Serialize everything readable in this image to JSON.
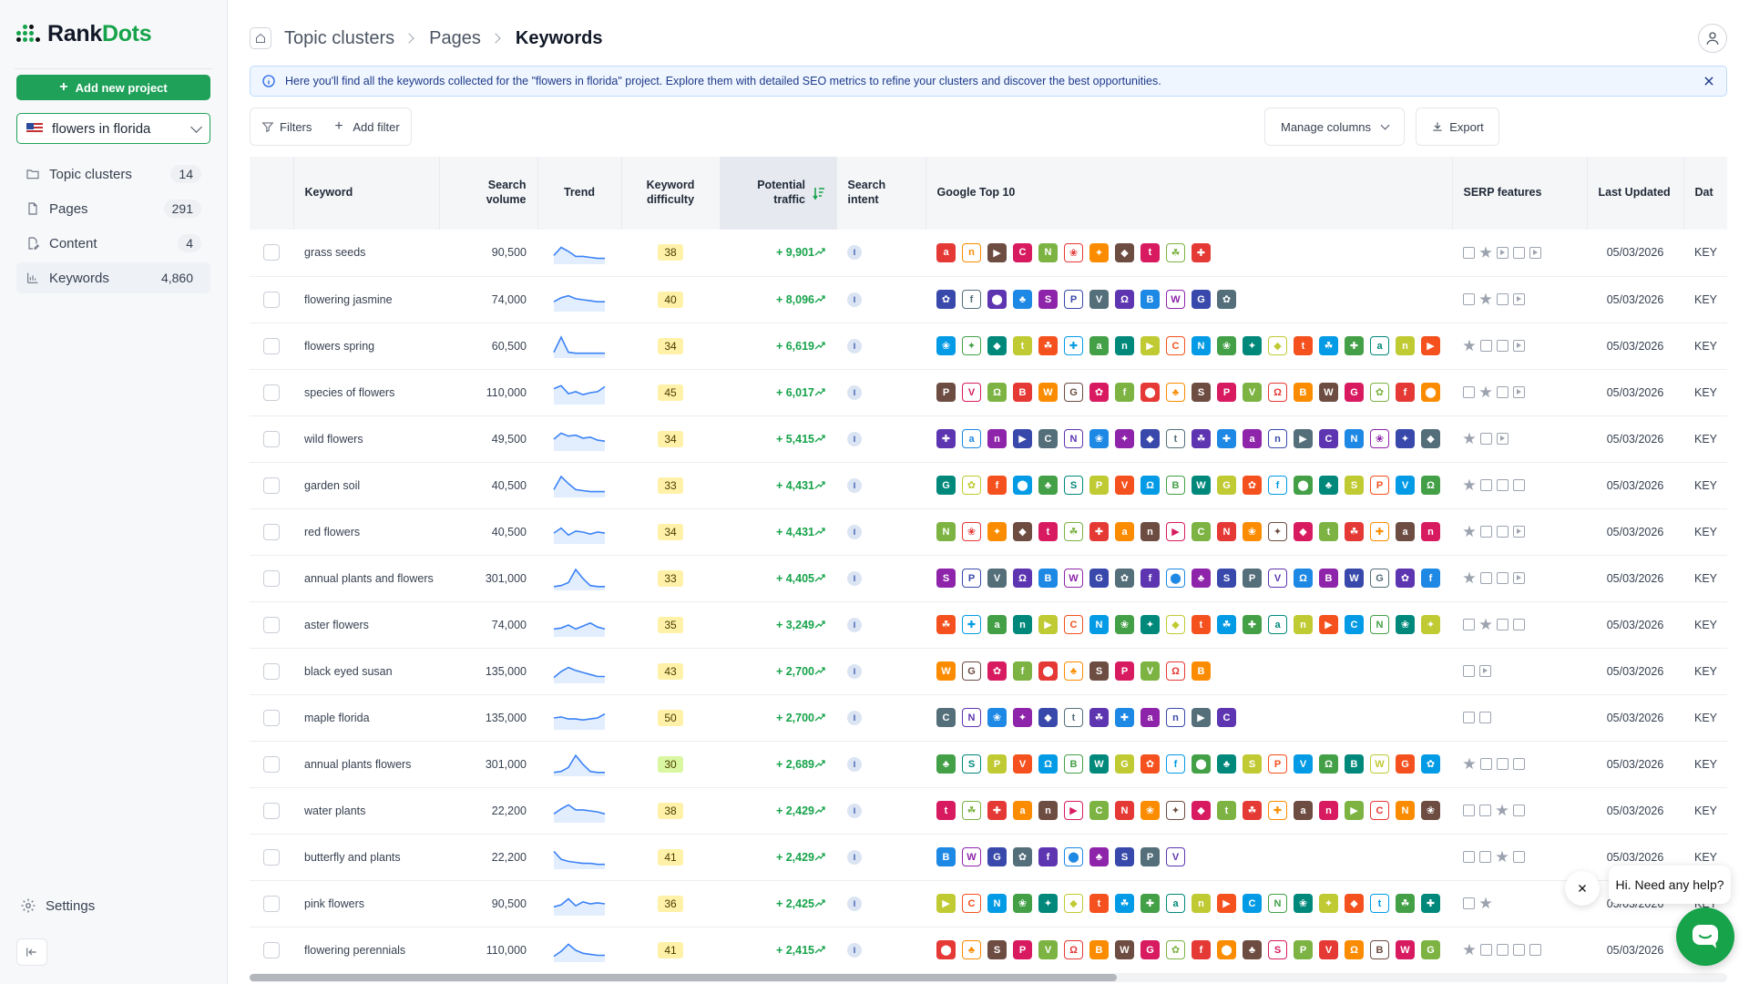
{
  "brand": {
    "name_a": "Rank",
    "name_b": "Dots",
    "color": "#16a34a"
  },
  "sidebar": {
    "add_project_label": "Add new project",
    "project": {
      "name": "flowers in florida",
      "flag": "us-flag-icon"
    },
    "items": [
      {
        "label": "Topic clusters",
        "count": "14",
        "icon": "folder-icon"
      },
      {
        "label": "Pages",
        "count": "291",
        "icon": "file-icon"
      },
      {
        "label": "Content",
        "count": "4",
        "icon": "edit-file-icon"
      },
      {
        "label": "Keywords",
        "count": "4,860",
        "icon": "bar-chart-icon",
        "active": true
      }
    ],
    "settings_label": "Settings"
  },
  "header": {
    "breadcrumbs": [
      "Topic clusters",
      "Pages",
      "Keywords"
    ]
  },
  "banner": {
    "text": "Here you'll find all the keywords collected for the \"flowers in florida\" project. Explore them with detailed SEO metrics to refine your clusters and discover the best opportunities."
  },
  "toolbar": {
    "filters_label": "Filters",
    "add_filter_label": "Add filter",
    "manage_columns_label": "Manage columns",
    "export_label": "Export"
  },
  "table": {
    "columns": {
      "keyword": "Keyword",
      "volume_a": "Search",
      "volume_b": "volume",
      "trend": "Trend",
      "difficulty_a": "Keyword",
      "difficulty_b": "difficulty",
      "traffic_a": "Potential",
      "traffic_b": "traffic",
      "intent_a": "Search",
      "intent_b": "intent",
      "top10": "Google Top 10",
      "serp": "SERP features",
      "updated": "Last Updated",
      "date_partial": "Dat"
    },
    "intent_label": "I",
    "date_partial_cell": "KEY",
    "rows": [
      {
        "keyword": "grass seeds",
        "volume": "90,500",
        "difficulty": 38,
        "traffic": "+ 9,901",
        "updated": "05/03/2026",
        "trend": [
          0.35,
          0.75,
          0.55,
          0.3,
          0.3,
          0.25,
          0.2,
          0.2
        ],
        "serp": [
          "box",
          "star",
          "play",
          "box",
          "play"
        ],
        "fav": 11
      },
      {
        "keyword": "flowering jasmine",
        "volume": "74,000",
        "difficulty": 40,
        "traffic": "+ 8,096",
        "updated": "05/03/2026",
        "trend": [
          0.4,
          0.6,
          0.7,
          0.55,
          0.5,
          0.45,
          0.4,
          0.4
        ],
        "serp": [
          "box",
          "star",
          "box",
          "play"
        ],
        "fav": 12
      },
      {
        "keyword": "flowers spring",
        "volume": "60,500",
        "difficulty": 34,
        "traffic": "+ 6,619",
        "updated": "05/03/2026",
        "trend": [
          0.2,
          0.95,
          0.2,
          0.15,
          0.15,
          0.15,
          0.15,
          0.15
        ],
        "serp": [
          "star",
          "box",
          "box",
          "play"
        ],
        "fav": 20
      },
      {
        "keyword": "species of flowers",
        "volume": "110,000",
        "difficulty": 45,
        "traffic": "+ 6,017",
        "updated": "05/03/2026",
        "trend": [
          0.7,
          0.85,
          0.45,
          0.55,
          0.4,
          0.5,
          0.55,
          0.8
        ],
        "serp": [
          "box",
          "star",
          "box",
          "play"
        ],
        "fav": 20
      },
      {
        "keyword": "wild flowers",
        "volume": "49,500",
        "difficulty": 34,
        "traffic": "+ 5,415",
        "updated": "05/03/2026",
        "trend": [
          0.5,
          0.8,
          0.65,
          0.7,
          0.55,
          0.6,
          0.45,
          0.4
        ],
        "serp": [
          "star",
          "box",
          "play"
        ],
        "fav": 20
      },
      {
        "keyword": "garden soil",
        "volume": "40,500",
        "difficulty": 33,
        "traffic": "+ 4,431",
        "updated": "05/03/2026",
        "trend": [
          0.3,
          0.95,
          0.6,
          0.3,
          0.25,
          0.2,
          0.2,
          0.2
        ],
        "serp": [
          "star",
          "box",
          "box",
          "box"
        ],
        "fav": 20
      },
      {
        "keyword": "red flowers",
        "volume": "40,500",
        "difficulty": 34,
        "traffic": "+ 4,431",
        "updated": "05/03/2026",
        "trend": [
          0.45,
          0.7,
          0.35,
          0.55,
          0.5,
          0.4,
          0.5,
          0.45
        ],
        "serp": [
          "star",
          "box",
          "box",
          "play"
        ],
        "fav": 20
      },
      {
        "keyword": "annual plants and flowers",
        "volume": "301,000",
        "difficulty": 33,
        "traffic": "+ 4,405",
        "updated": "05/03/2026",
        "trend": [
          0.1,
          0.15,
          0.3,
          0.95,
          0.5,
          0.15,
          0.1,
          0.1
        ],
        "serp": [
          "star",
          "box",
          "box",
          "play"
        ],
        "fav": 20
      },
      {
        "keyword": "aster flowers",
        "volume": "74,000",
        "difficulty": 35,
        "traffic": "+ 3,249",
        "updated": "05/03/2026",
        "trend": [
          0.3,
          0.35,
          0.5,
          0.3,
          0.45,
          0.6,
          0.4,
          0.3
        ],
        "serp": [
          "box",
          "star",
          "box",
          "box"
        ],
        "fav": 20
      },
      {
        "keyword": "black eyed susan",
        "volume": "135,000",
        "difficulty": 43,
        "traffic": "+ 2,700",
        "updated": "05/03/2026",
        "trend": [
          0.2,
          0.5,
          0.7,
          0.55,
          0.45,
          0.35,
          0.25,
          0.25
        ],
        "serp": [
          "box",
          "play"
        ],
        "fav": 11
      },
      {
        "keyword": "maple florida",
        "volume": "135,000",
        "difficulty": 50,
        "traffic": "+ 2,700",
        "updated": "05/03/2026",
        "trend": [
          0.5,
          0.55,
          0.45,
          0.45,
          0.4,
          0.45,
          0.5,
          0.7
        ],
        "serp": [
          "box",
          "box"
        ],
        "fav": 12
      },
      {
        "keyword": "annual plants flowers",
        "volume": "301,000",
        "difficulty": 30,
        "traffic": "+ 2,689",
        "updated": "05/03/2026",
        "trend": [
          0.1,
          0.15,
          0.35,
          0.95,
          0.5,
          0.15,
          0.1,
          0.1
        ],
        "serp": [
          "star",
          "box",
          "box",
          "box"
        ],
        "fav": 20
      },
      {
        "keyword": "water plants",
        "volume": "22,200",
        "difficulty": 38,
        "traffic": "+ 2,429",
        "updated": "05/03/2026",
        "trend": [
          0.35,
          0.6,
          0.8,
          0.55,
          0.55,
          0.5,
          0.45,
          0.35
        ],
        "serp": [
          "box",
          "box",
          "star",
          "box"
        ],
        "fav": 20
      },
      {
        "keyword": "butterfly and plants",
        "volume": "22,200",
        "difficulty": 41,
        "traffic": "+ 2,429",
        "updated": "05/03/2026",
        "trend": [
          0.8,
          0.4,
          0.3,
          0.25,
          0.2,
          0.2,
          0.15,
          0.15
        ],
        "serp": [
          "box",
          "box",
          "star",
          "box"
        ],
        "fav": 10
      },
      {
        "keyword": "pink flowers",
        "volume": "90,500",
        "difficulty": 36,
        "traffic": "+ 2,425",
        "updated": "05/03/2026",
        "trend": [
          0.35,
          0.45,
          0.75,
          0.4,
          0.6,
          0.5,
          0.55,
          0.5
        ],
        "serp": [
          "box",
          "star"
        ],
        "fav": 20
      },
      {
        "keyword": "flowering perennials",
        "volume": "110,000",
        "difficulty": 41,
        "traffic": "+ 2,415",
        "updated": "05/03/2026",
        "trend": [
          0.2,
          0.45,
          0.8,
          0.5,
          0.35,
          0.3,
          0.25,
          0.25
        ],
        "serp": [
          "star",
          "box",
          "box",
          "box",
          "box"
        ],
        "fav": 20
      }
    ]
  },
  "chat": {
    "greeting": "Hi. Need any help?"
  },
  "colors": {
    "accent": "#1fa159",
    "diff_yellow": "#fff1a8",
    "diff_green": "#d9f7a0",
    "fav_palette": [
      "#e53935",
      "#1e88e5",
      "#43a047",
      "#fb8c00",
      "#8e24aa",
      "#00897b",
      "#6d4c41",
      "#3949ab",
      "#c0ca33",
      "#d81b60",
      "#546e7a",
      "#f4511e",
      "#7cb342",
      "#5e35b1",
      "#039be5"
    ]
  }
}
